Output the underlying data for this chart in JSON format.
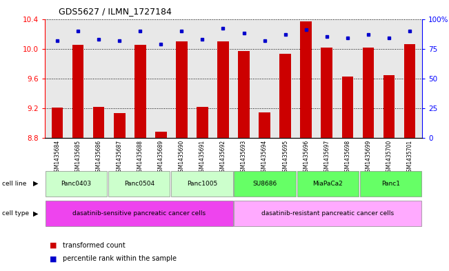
{
  "title": "GDS5627 / ILMN_1727184",
  "samples": [
    "GSM1435684",
    "GSM1435685",
    "GSM1435686",
    "GSM1435687",
    "GSM1435688",
    "GSM1435689",
    "GSM1435690",
    "GSM1435691",
    "GSM1435692",
    "GSM1435693",
    "GSM1435694",
    "GSM1435695",
    "GSM1435696",
    "GSM1435697",
    "GSM1435698",
    "GSM1435699",
    "GSM1435700",
    "GSM1435701"
  ],
  "bar_values": [
    9.21,
    10.05,
    9.22,
    9.14,
    10.05,
    8.89,
    10.1,
    9.22,
    10.1,
    9.97,
    9.15,
    9.93,
    10.37,
    10.02,
    9.63,
    10.02,
    9.65,
    10.06
  ],
  "percentile_values": [
    82,
    90,
    83,
    82,
    90,
    79,
    90,
    83,
    92,
    88,
    82,
    87,
    91,
    85,
    84,
    87,
    84,
    90
  ],
  "bar_color": "#cc0000",
  "dot_color": "#0000cc",
  "ylim_left": [
    8.8,
    10.4
  ],
  "ylim_right": [
    0,
    100
  ],
  "yticks_left": [
    8.8,
    9.2,
    9.6,
    10.0,
    10.4
  ],
  "yticks_right": [
    0,
    25,
    50,
    75,
    100
  ],
  "ytick_labels_right": [
    "0",
    "25",
    "50",
    "75",
    "100%"
  ],
  "cell_lines": [
    {
      "name": "Panc0403",
      "start": 0,
      "end": 2,
      "color": "#ccffcc"
    },
    {
      "name": "Panc0504",
      "start": 3,
      "end": 5,
      "color": "#ccffcc"
    },
    {
      "name": "Panc1005",
      "start": 6,
      "end": 8,
      "color": "#ccffcc"
    },
    {
      "name": "SU8686",
      "start": 9,
      "end": 11,
      "color": "#66ff66"
    },
    {
      "name": "MiaPaCa2",
      "start": 12,
      "end": 14,
      "color": "#66ff66"
    },
    {
      "name": "Panc1",
      "start": 15,
      "end": 17,
      "color": "#66ff66"
    }
  ],
  "cell_types": [
    {
      "name": "dasatinib-sensitive pancreatic cancer cells",
      "start": 0,
      "end": 8,
      "color": "#ee44ee"
    },
    {
      "name": "dasatinib-resistant pancreatic cancer cells",
      "start": 9,
      "end": 17,
      "color": "#ffaaff"
    }
  ],
  "legend_items": [
    {
      "label": "transformed count",
      "color": "#cc0000"
    },
    {
      "label": "percentile rank within the sample",
      "color": "#0000cc"
    }
  ],
  "background_color": "#ffffff",
  "plot_bg": "#f8f8f8"
}
